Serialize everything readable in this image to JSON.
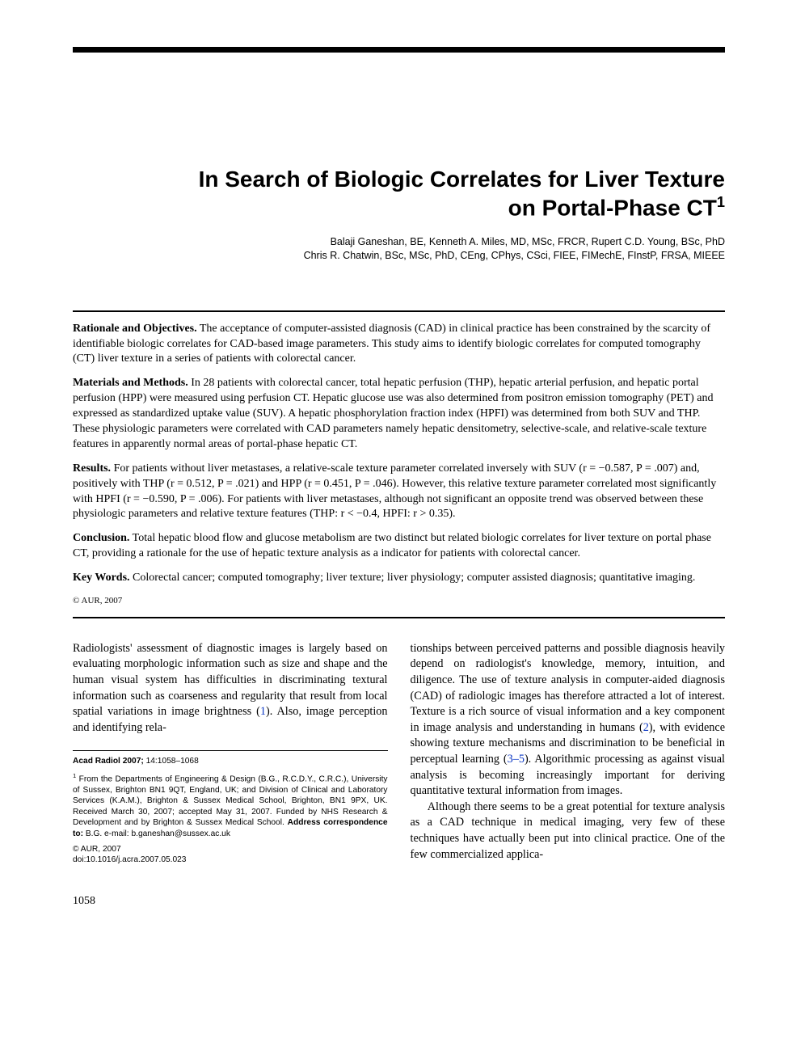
{
  "title_line1": "In Search of Biologic Correlates for Liver Texture",
  "title_line2": "on Portal-Phase CT",
  "title_sup": "1",
  "authors_line1": "Balaji Ganeshan, BE, Kenneth A. Miles, MD, MSc, FRCR, Rupert C.D. Young, BSc, PhD",
  "authors_line2": "Chris R. Chatwin, BSc, MSc, PhD, CEng, CPhys, CSci, FIEE, FIMechE, FInstP, FRSA, MIEEE",
  "abstract": {
    "rationale_label": "Rationale and Objectives.",
    "rationale_text": " The acceptance of computer-assisted diagnosis (CAD) in clinical practice has been constrained by the scarcity of identifiable biologic correlates for CAD-based image parameters. This study aims to identify biologic correlates for computed tomography (CT) liver texture in a series of patients with colorectal cancer.",
    "methods_label": "Materials and Methods.",
    "methods_text": " In 28 patients with colorectal cancer, total hepatic perfusion (THP), hepatic arterial perfusion, and hepatic portal perfusion (HPP) were measured using perfusion CT. Hepatic glucose use was also determined from positron emission tomography (PET) and expressed as standardized uptake value (SUV). A hepatic phosphorylation fraction index (HPFI) was determined from both SUV and THP. These physiologic parameters were correlated with CAD parameters namely hepatic densitometry, selective-scale, and relative-scale texture features in apparently normal areas of portal-phase hepatic CT.",
    "results_label": "Results.",
    "results_text": " For patients without liver metastases, a relative-scale texture parameter correlated inversely with SUV (r = −0.587, P = .007) and, positively with THP (r = 0.512, P = .021) and HPP (r = 0.451, P = .046). However, this relative texture parameter correlated most significantly with HPFI (r = −0.590, P = .006). For patients with liver metastases, although not significant an opposite trend was observed between these physiologic parameters and relative texture features (THP: r < −0.4, HPFI: r > 0.35).",
    "conclusion_label": "Conclusion.",
    "conclusion_text": " Total hepatic blood flow and glucose metabolism are two distinct but related biologic correlates for liver texture on portal phase CT, providing a rationale for the use of hepatic texture analysis as a indicator for patients with colorectal cancer.",
    "keywords_label": "Key Words.",
    "keywords_text": " Colorectal cancer; computed tomography; liver texture; liver physiology; computer assisted diagnosis; quantitative imaging.",
    "copyright": "© AUR, 2007"
  },
  "body": {
    "col1_p1_a": "Radiologists' assessment of diagnostic images is largely based on evaluating morphologic information such as size and shape and the human visual system has difficulties in discriminating textural information such as coarseness and regularity that result from local spatial variations in image brightness (",
    "col1_ref1": "1",
    "col1_p1_b": "). Also, image perception and identifying rela-",
    "col2_p1_a": "tionships between perceived patterns and possible diagnosis heavily depend on radiologist's knowledge, memory, intuition, and diligence. The use of texture analysis in computer-aided diagnosis (CAD) of radiologic images has therefore attracted a lot of interest. Texture is a rich source of visual information and a key component in image analysis and understanding in humans (",
    "col2_ref2": "2",
    "col2_p1_b": "), with evidence showing texture mechanisms and discrimination to be beneficial in perceptual learning (",
    "col2_ref35": "3–5",
    "col2_p1_c": "). Algorithmic processing as against visual analysis is becoming increasingly important for deriving quantitative textural information from images.",
    "col2_p2": "Although there seems to be a great potential for texture analysis as a CAD technique in medical imaging, very few of these techniques have actually been put into clinical practice. One of the few commercialized applica-"
  },
  "footnotes": {
    "citation_label": "Acad Radiol 2007; ",
    "citation_vol": "14:1058–1068",
    "fn1_a": " From the Departments of Engineering & Design (B.G., R.C.D.Y., C.R.C.), University of Sussex, Brighton BN1 9QT, England, UK; and Division of Clinical and Laboratory Services (K.A.M.), Brighton & Sussex Medical School, Brighton, BN1 9PX, UK. Received March 30, 2007; accepted May 31, 2007. Funded by NHS Research & Development and by Brighton & Sussex Medical School. ",
    "fn1_addr_label": "Address correspondence to:",
    "fn1_b": " B.G. e-mail: b.ganeshan@sussex.ac.uk",
    "copyright": "© AUR, 2007",
    "doi": "doi:10.1016/j.acra.2007.05.023"
  },
  "page_number": "1058"
}
